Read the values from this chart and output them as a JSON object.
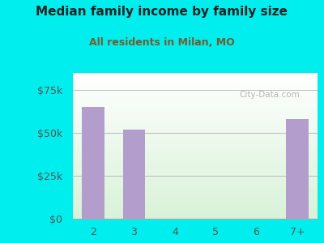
{
  "title": "Median family income by family size",
  "subtitle": "All residents in Milan, MO",
  "categories": [
    "2",
    "3",
    "4",
    "5",
    "6",
    "7+"
  ],
  "values": [
    65000,
    52000,
    0,
    0,
    0,
    58000
  ],
  "bar_color": "#b39dcc",
  "outer_bg": "#00eeee",
  "title_color": "#222222",
  "subtitle_color": "#7a5a2a",
  "axis_label_color": "#555555",
  "yticks": [
    0,
    25000,
    50000,
    75000
  ],
  "ytick_labels": [
    "$0",
    "$25k",
    "$50k",
    "$75k"
  ],
  "ylim": [
    0,
    85000
  ],
  "watermark": "City-Data.com",
  "bar_width": 0.55
}
